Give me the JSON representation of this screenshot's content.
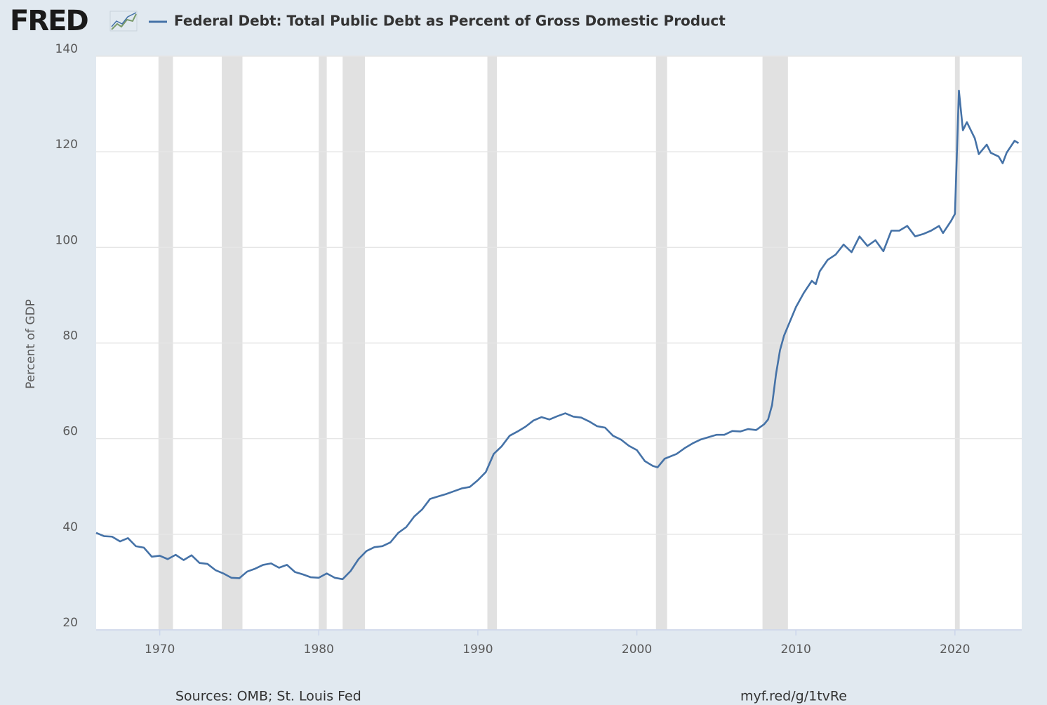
{
  "chart_data": {
    "type": "line",
    "logo": "FRED",
    "y_label": "Percent of GDP",
    "source": "Sources: OMB; St. Louis Fed",
    "link": "myf.red/g/1tvRe",
    "xlim": [
      1966.0,
      2024.2
    ],
    "xticks": [
      1970,
      1980,
      1990,
      2000,
      2010,
      2020
    ],
    "ylim": [
      20,
      140
    ],
    "yticks": [
      20,
      40,
      60,
      80,
      100,
      120,
      140
    ],
    "grid": true,
    "recession_color": "#e1e1e1",
    "recessions": [
      [
        1969.92,
        1970.83
      ],
      [
        1973.9,
        1975.2
      ],
      [
        1980.0,
        1980.5
      ],
      [
        1981.5,
        1982.9
      ],
      [
        1990.6,
        1991.2
      ],
      [
        2001.2,
        2001.9
      ],
      [
        2007.9,
        2009.5
      ],
      [
        2020.0,
        2020.3
      ]
    ],
    "x": [
      1966.0,
      1966.5,
      1967.0,
      1967.5,
      1968.0,
      1968.5,
      1969.0,
      1969.5,
      1970.0,
      1970.5,
      1971.0,
      1971.5,
      1972.0,
      1972.5,
      1973.0,
      1973.5,
      1974.0,
      1974.5,
      1975.0,
      1975.5,
      1976.0,
      1976.5,
      1977.0,
      1977.5,
      1978.0,
      1978.5,
      1979.0,
      1979.5,
      1980.0,
      1980.5,
      1981.0,
      1981.5,
      1982.0,
      1982.5,
      1983.0,
      1983.5,
      1984.0,
      1984.5,
      1985.0,
      1985.5,
      1986.0,
      1986.5,
      1987.0,
      1987.5,
      1988.0,
      1988.5,
      1989.0,
      1989.5,
      1990.0,
      1990.5,
      1991.0,
      1991.5,
      1992.0,
      1992.5,
      1993.0,
      1993.5,
      1994.0,
      1994.5,
      1995.0,
      1995.5,
      1996.0,
      1996.5,
      1997.0,
      1997.5,
      1998.0,
      1998.5,
      1999.0,
      1999.5,
      2000.0,
      2000.5,
      2001.0,
      2001.3,
      2001.75,
      2002.5,
      2003.0,
      2003.5,
      2004.0,
      2004.5,
      2005.0,
      2005.5,
      2006.0,
      2006.5,
      2007.0,
      2007.5,
      2008.0,
      2008.25,
      2008.5,
      2008.75,
      2009.0,
      2009.25,
      2009.5,
      2010.0,
      2010.5,
      2011.0,
      2011.25,
      2011.5,
      2012.0,
      2012.5,
      2013.0,
      2013.5,
      2014.0,
      2014.5,
      2015.0,
      2015.5,
      2016.0,
      2016.5,
      2017.0,
      2017.5,
      2018.0,
      2018.5,
      2019.0,
      2019.25,
      2019.75,
      2020.0,
      2020.25,
      2020.5,
      2020.75,
      2021.25,
      2021.5,
      2022.0,
      2022.25,
      2022.75,
      2023.0,
      2023.25,
      2023.75,
      2024.0
    ],
    "series": [
      {
        "name": "Federal Debt: Total Public Debt as Percent of Gross Domestic Product",
        "color": "#4572a7",
        "values": [
          40.3,
          39.6,
          39.5,
          38.5,
          39.2,
          37.5,
          37.2,
          35.3,
          35.5,
          34.8,
          35.7,
          34.6,
          35.6,
          34.0,
          33.8,
          32.5,
          31.8,
          30.9,
          30.8,
          32.2,
          32.8,
          33.6,
          33.9,
          33.0,
          33.6,
          32.1,
          31.6,
          31.0,
          30.9,
          31.8,
          30.9,
          30.6,
          32.3,
          34.8,
          36.5,
          37.3,
          37.5,
          38.3,
          40.3,
          41.5,
          43.7,
          45.2,
          47.4,
          47.9,
          48.4,
          49.0,
          49.6,
          49.9,
          51.3,
          53.0,
          56.8,
          58.4,
          60.6,
          61.5,
          62.5,
          63.8,
          64.5,
          64.0,
          64.7,
          65.3,
          64.6,
          64.4,
          63.6,
          62.6,
          62.3,
          60.6,
          59.8,
          58.5,
          57.6,
          55.3,
          54.3,
          54.0,
          55.8,
          56.8,
          58.0,
          59.0,
          59.8,
          60.3,
          60.8,
          60.8,
          61.6,
          61.5,
          62.0,
          61.8,
          63.0,
          64.0,
          67.0,
          73.5,
          78.5,
          81.5,
          83.5,
          87.5,
          90.5,
          93.0,
          92.3,
          95.0,
          97.4,
          98.5,
          100.6,
          99.0,
          102.3,
          100.3,
          101.5,
          99.2,
          103.5,
          103.5,
          104.5,
          102.3,
          102.8,
          103.5,
          104.5,
          103.0,
          105.5,
          107.0,
          132.8,
          124.5,
          126.2,
          122.8,
          119.5,
          121.5,
          119.8,
          119.0,
          117.6,
          119.8,
          122.3,
          121.8
        ]
      }
    ]
  }
}
